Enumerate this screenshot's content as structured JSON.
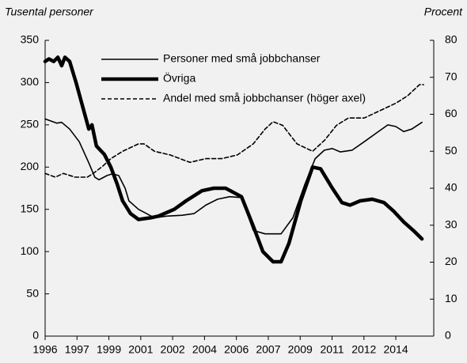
{
  "chart_data": {
    "type": "line",
    "y_axis_label": "Tusental personer",
    "y2_axis_label": "Procent",
    "xlim": [
      0,
      12.19
    ],
    "xticks": [
      {
        "value": 0,
        "label": "1996"
      },
      {
        "value": 1,
        "label": "1997"
      },
      {
        "value": 2,
        "label": "1999"
      },
      {
        "value": 3,
        "label": "2001"
      },
      {
        "value": 4,
        "label": "2002"
      },
      {
        "value": 5,
        "label": "2004"
      },
      {
        "value": 6,
        "label": "2006"
      },
      {
        "value": 7,
        "label": "2007"
      },
      {
        "value": 8,
        "label": "2009"
      },
      {
        "value": 9,
        "label": "2011"
      },
      {
        "value": 10,
        "label": "2012"
      },
      {
        "value": 11,
        "label": "2014"
      }
    ],
    "ylim": [
      0,
      350
    ],
    "yticks": [
      0,
      50,
      100,
      150,
      200,
      250,
      300,
      350
    ],
    "y2lim": [
      0,
      80
    ],
    "y2ticks": [
      0,
      10,
      20,
      30,
      40,
      50,
      60,
      70,
      80
    ],
    "grid": false,
    "legend": "top",
    "series": [
      {
        "name": "Personer med små jobbchanser",
        "color": "#000000",
        "style": "thin",
        "x": [
          0,
          0.37,
          0.52,
          0.77,
          1.07,
          1.37,
          1.56,
          1.69,
          1.94,
          2.11,
          2.31,
          2.51,
          2.63,
          2.93,
          3.18,
          3.43,
          3.8,
          4.3,
          4.67,
          5.04,
          5.41,
          5.79,
          6.16,
          6.53,
          6.9,
          7.4,
          7.77,
          8.15,
          8.47,
          8.76,
          9.01,
          9.26,
          9.63,
          10.01,
          10.38,
          10.75,
          11.0,
          11.25,
          11.5,
          11.82
        ],
        "values": [
          257,
          252,
          253,
          245,
          230,
          205,
          188,
          185,
          190,
          192,
          190,
          175,
          160,
          150,
          145,
          140,
          142,
          143,
          145,
          155,
          162,
          165,
          164,
          125,
          121,
          121,
          140,
          180,
          210,
          220,
          222,
          218,
          220,
          230,
          240,
          250,
          248,
          242,
          245,
          253
        ]
      },
      {
        "name": "Övriga",
        "color": "#000000",
        "style": "thick",
        "x": [
          0,
          0.12,
          0.27,
          0.4,
          0.52,
          0.62,
          0.77,
          0.97,
          1.19,
          1.37,
          1.47,
          1.61,
          1.86,
          2.06,
          2.26,
          2.43,
          2.68,
          2.93,
          3.31,
          3.55,
          4.05,
          4.42,
          4.92,
          5.29,
          5.66,
          6.16,
          6.53,
          6.83,
          7.15,
          7.4,
          7.65,
          8.02,
          8.39,
          8.64,
          9.01,
          9.31,
          9.56,
          9.88,
          10.26,
          10.63,
          10.93,
          11.25,
          11.55,
          11.82
        ],
        "values": [
          325,
          328,
          325,
          330,
          320,
          330,
          325,
          300,
          270,
          245,
          250,
          225,
          215,
          200,
          180,
          160,
          145,
          138,
          140,
          142,
          150,
          160,
          172,
          175,
          175,
          165,
          130,
          100,
          88,
          88,
          110,
          160,
          200,
          198,
          175,
          158,
          155,
          160,
          162,
          158,
          148,
          135,
          125,
          115
        ]
      },
      {
        "name": "Andel med små jobbchanser (höger axel)",
        "color": "#000000",
        "style": "dashed",
        "axis": "y2",
        "x": [
          0,
          0.32,
          0.57,
          0.94,
          1.32,
          1.51,
          1.81,
          2.06,
          2.43,
          2.93,
          3.1,
          3.43,
          3.92,
          4.54,
          5.04,
          5.54,
          6.03,
          6.53,
          6.9,
          7.15,
          7.45,
          7.9,
          8.39,
          8.77,
          9.14,
          9.51,
          10.01,
          10.51,
          11.0,
          11.37,
          11.74,
          11.87
        ],
        "values": [
          44,
          43,
          44,
          43,
          43,
          44,
          46,
          48,
          50,
          52,
          52,
          50,
          49,
          47,
          48,
          48,
          49,
          52,
          56,
          58,
          57,
          52,
          50,
          53,
          57,
          59,
          59,
          61,
          63,
          65,
          68,
          68
        ]
      }
    ]
  }
}
